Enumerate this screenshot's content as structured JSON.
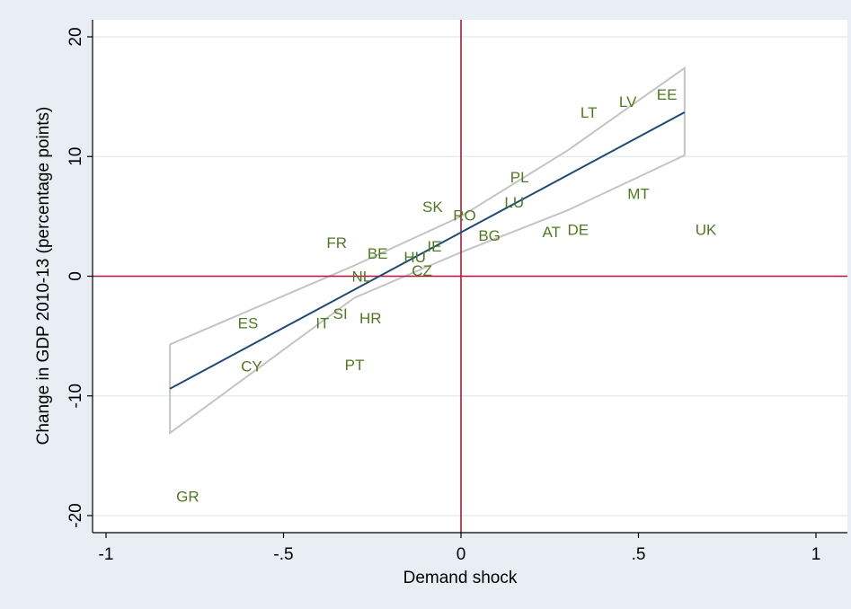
{
  "chart_data": {
    "type": "scatter",
    "title": "",
    "xlabel": "Demand shock",
    "ylabel": "Change in GDP 2010-13 (percentage points)",
    "xlim": [
      -1,
      1
    ],
    "ylim": [
      -20,
      20
    ],
    "x_ticks": [
      -1,
      -0.5,
      0,
      0.5,
      1
    ],
    "x_tick_labels": [
      "-1",
      "-.5",
      "0",
      ".5",
      "1"
    ],
    "y_ticks": [
      -20,
      -10,
      0,
      10,
      20
    ],
    "y_tick_labels": [
      "-20",
      "-10",
      "0",
      "10",
      "20"
    ],
    "grid": "horizontal",
    "reference_lines": {
      "x": 0,
      "y": 0,
      "color": "#b5173c"
    },
    "colors": {
      "points": "#4e7a1f",
      "fit": "#1e4a78",
      "ci": "#c4c4c4",
      "background": "#e8eef3",
      "plot_bg": "#ffffff"
    },
    "points": [
      {
        "label": "EE",
        "x": 0.58,
        "y": 15.2
      },
      {
        "label": "LV",
        "x": 0.47,
        "y": 14.6
      },
      {
        "label": "LT",
        "x": 0.36,
        "y": 13.7
      },
      {
        "label": "PL",
        "x": 0.165,
        "y": 8.3
      },
      {
        "label": "LU",
        "x": 0.15,
        "y": 6.2
      },
      {
        "label": "MT",
        "x": 0.5,
        "y": 6.9
      },
      {
        "label": "SK",
        "x": -0.08,
        "y": 5.8
      },
      {
        "label": "RO",
        "x": 0.01,
        "y": 5.1
      },
      {
        "label": "BG",
        "x": 0.08,
        "y": 3.4
      },
      {
        "label": "AT",
        "x": 0.255,
        "y": 3.7
      },
      {
        "label": "DE",
        "x": 0.33,
        "y": 3.9
      },
      {
        "label": "UK",
        "x": 0.69,
        "y": 3.9
      },
      {
        "label": "FR",
        "x": -0.35,
        "y": 2.8
      },
      {
        "label": "BE",
        "x": -0.235,
        "y": 1.9
      },
      {
        "label": "IE",
        "x": -0.075,
        "y": 2.5
      },
      {
        "label": "HU",
        "x": -0.13,
        "y": 1.6
      },
      {
        "label": "CZ",
        "x": -0.11,
        "y": 0.5
      },
      {
        "label": "NL",
        "x": -0.28,
        "y": 0.0
      },
      {
        "label": "SI",
        "x": -0.34,
        "y": -3.1
      },
      {
        "label": "IT",
        "x": -0.39,
        "y": -3.9
      },
      {
        "label": "HR",
        "x": -0.255,
        "y": -3.5
      },
      {
        "label": "ES",
        "x": -0.6,
        "y": -3.9
      },
      {
        "label": "CY",
        "x": -0.59,
        "y": -7.5
      },
      {
        "label": "PT",
        "x": -0.3,
        "y": -7.4
      },
      {
        "label": "GR",
        "x": -0.77,
        "y": -18.4
      }
    ],
    "fit_line": {
      "x": [
        -0.82,
        0.63
      ],
      "y": [
        -9.4,
        13.7
      ]
    },
    "confidence_band": {
      "upper": {
        "x": [
          -0.82,
          -0.3,
          0.0,
          0.3,
          0.63
        ],
        "y": [
          -5.7,
          0.9,
          5.0,
          10.5,
          17.4
        ]
      },
      "lower": {
        "x": [
          -0.82,
          -0.3,
          0.0,
          0.3,
          0.63
        ],
        "y": [
          -13.1,
          -1.8,
          2.0,
          5.5,
          10.1
        ]
      }
    }
  }
}
